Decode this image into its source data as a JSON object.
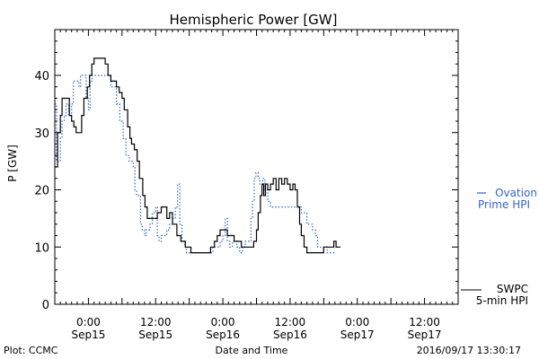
{
  "chart_data": {
    "type": "line",
    "title": "Hemispheric Power [GW]",
    "ylabel": "P [GW]",
    "xlabel": "Date and Time",
    "footer_left": "Plot: CCMC",
    "footer_right": "2016/09/17 13:30:17",
    "x_unit": "hours since 2016-09-14 18:00",
    "xlim": [
      0,
      72
    ],
    "ylim": [
      0,
      48
    ],
    "yticks": [
      0,
      10,
      20,
      30,
      40
    ],
    "xticks": [
      {
        "x": 6,
        "time": "0:00",
        "date": "Sep15"
      },
      {
        "x": 18,
        "time": "12:00",
        "date": "Sep15"
      },
      {
        "x": 30,
        "time": "0:00",
        "date": "Sep16"
      },
      {
        "x": 42,
        "time": "12:00",
        "date": "Sep16"
      },
      {
        "x": 54,
        "time": "0:00",
        "date": "Sep17"
      },
      {
        "x": 66,
        "time": "12:00",
        "date": "Sep17"
      }
    ],
    "series": [
      {
        "name_line1": "SWPC",
        "name_line2": "5-min HPI",
        "color": "#000000",
        "style": "solid",
        "points": [
          [
            0.0,
            24
          ],
          [
            0.5,
            30
          ],
          [
            1.0,
            33
          ],
          [
            1.3,
            36
          ],
          [
            2.2,
            36
          ],
          [
            2.6,
            33
          ],
          [
            3.0,
            32
          ],
          [
            3.4,
            31
          ],
          [
            3.8,
            30
          ],
          [
            4.4,
            30
          ],
          [
            4.8,
            33
          ],
          [
            5.2,
            36
          ],
          [
            5.8,
            38
          ],
          [
            6.2,
            40
          ],
          [
            6.6,
            42
          ],
          [
            7.0,
            43
          ],
          [
            8.6,
            43
          ],
          [
            9.0,
            42
          ],
          [
            9.5,
            40
          ],
          [
            10.0,
            39
          ],
          [
            11.0,
            38
          ],
          [
            11.5,
            37
          ],
          [
            12.0,
            36
          ],
          [
            12.4,
            34
          ],
          [
            13.0,
            31
          ],
          [
            13.4,
            29
          ],
          [
            13.7,
            28
          ],
          [
            14.2,
            27
          ],
          [
            14.7,
            25
          ],
          [
            15.1,
            22
          ],
          [
            15.7,
            19
          ],
          [
            16.1,
            17
          ],
          [
            16.5,
            15
          ],
          [
            18.0,
            15
          ],
          [
            18.3,
            16
          ],
          [
            18.7,
            16
          ],
          [
            19.0,
            17
          ],
          [
            19.5,
            17
          ],
          [
            20.0,
            15
          ],
          [
            20.5,
            16
          ],
          [
            21.0,
            14
          ],
          [
            21.4,
            14
          ],
          [
            21.8,
            12
          ],
          [
            22.2,
            12
          ],
          [
            22.5,
            11
          ],
          [
            23.0,
            11
          ],
          [
            23.3,
            10
          ],
          [
            24.0,
            10
          ],
          [
            24.3,
            9
          ],
          [
            27.5,
            9
          ],
          [
            27.8,
            10
          ],
          [
            28.5,
            11
          ],
          [
            29.0,
            12
          ],
          [
            29.5,
            13
          ],
          [
            30.5,
            13
          ],
          [
            30.8,
            12
          ],
          [
            31.5,
            12
          ],
          [
            32.0,
            11
          ],
          [
            33.0,
            11
          ],
          [
            33.3,
            10
          ],
          [
            35.0,
            10
          ],
          [
            35.5,
            11
          ],
          [
            36.0,
            13
          ],
          [
            36.3,
            16
          ],
          [
            36.7,
            19
          ],
          [
            37.0,
            21
          ],
          [
            37.3,
            19
          ],
          [
            37.6,
            21
          ],
          [
            38.0,
            20
          ],
          [
            38.5,
            21
          ],
          [
            39.0,
            22
          ],
          [
            39.5,
            20
          ],
          [
            40.0,
            22
          ],
          [
            40.5,
            21
          ],
          [
            41.0,
            22
          ],
          [
            41.5,
            21
          ],
          [
            42.0,
            20
          ],
          [
            42.5,
            21
          ],
          [
            42.9,
            20
          ],
          [
            43.3,
            17
          ],
          [
            43.7,
            14
          ],
          [
            44.0,
            12
          ],
          [
            44.5,
            10
          ],
          [
            45.0,
            9
          ],
          [
            47.5,
            9
          ],
          [
            48.0,
            10
          ],
          [
            49.5,
            10
          ],
          [
            49.8,
            11
          ],
          [
            50.2,
            10
          ],
          [
            51.0,
            10
          ]
        ]
      },
      {
        "name_line1": "Ovation",
        "name_line2": "Prime HPI",
        "color": "#3366cc",
        "style": "dotted",
        "points": [
          [
            0.0,
            35
          ],
          [
            0.3,
            25
          ],
          [
            0.8,
            25
          ],
          [
            1.0,
            29
          ],
          [
            1.3,
            32
          ],
          [
            1.7,
            33
          ],
          [
            2.0,
            35
          ],
          [
            2.5,
            33
          ],
          [
            3.0,
            35
          ],
          [
            3.3,
            39
          ],
          [
            4.0,
            39
          ],
          [
            4.3,
            38
          ],
          [
            4.6,
            40
          ],
          [
            5.2,
            40
          ],
          [
            5.6,
            36
          ],
          [
            6.0,
            34
          ],
          [
            6.3,
            39
          ],
          [
            6.7,
            40
          ],
          [
            9.5,
            40
          ],
          [
            10.0,
            38
          ],
          [
            11.0,
            35
          ],
          [
            11.6,
            32
          ],
          [
            12.2,
            29
          ],
          [
            12.7,
            26
          ],
          [
            13.3,
            25
          ],
          [
            13.7,
            25
          ],
          [
            14.0,
            24
          ],
          [
            14.3,
            20
          ],
          [
            14.6,
            19
          ],
          [
            15.0,
            19
          ],
          [
            15.3,
            14
          ],
          [
            15.6,
            13
          ],
          [
            16.0,
            12
          ],
          [
            16.3,
            13
          ],
          [
            17.0,
            14
          ],
          [
            17.4,
            16
          ],
          [
            18.0,
            17
          ],
          [
            18.3,
            12
          ],
          [
            18.6,
            11
          ],
          [
            19.0,
            12
          ],
          [
            19.5,
            12
          ],
          [
            20.0,
            13
          ],
          [
            20.5,
            14
          ],
          [
            21.0,
            15
          ],
          [
            21.5,
            17
          ],
          [
            21.9,
            21
          ],
          [
            22.3,
            14
          ],
          [
            22.7,
            11
          ],
          [
            23.2,
            10
          ],
          [
            23.5,
            9
          ],
          [
            27.8,
            9
          ],
          [
            28.2,
            10
          ],
          [
            29.0,
            10
          ],
          [
            29.5,
            11
          ],
          [
            30.0,
            12
          ],
          [
            30.4,
            15
          ],
          [
            30.8,
            11
          ],
          [
            31.2,
            10
          ],
          [
            31.7,
            11
          ],
          [
            32.3,
            11
          ],
          [
            32.5,
            10
          ],
          [
            33.0,
            9
          ],
          [
            33.5,
            10
          ],
          [
            34.0,
            11
          ],
          [
            35.0,
            15
          ],
          [
            35.3,
            18
          ],
          [
            35.6,
            22
          ],
          [
            35.9,
            23
          ],
          [
            36.3,
            22
          ],
          [
            36.6,
            21
          ],
          [
            37.1,
            22
          ],
          [
            37.5,
            20
          ],
          [
            38.0,
            18
          ],
          [
            38.5,
            17
          ],
          [
            43.5,
            17
          ],
          [
            44.0,
            16
          ],
          [
            45.0,
            14
          ],
          [
            46.0,
            13
          ],
          [
            46.5,
            12
          ],
          [
            46.9,
            10
          ],
          [
            47.3,
            10
          ],
          [
            47.6,
            10
          ],
          [
            48.3,
            10
          ],
          [
            48.6,
            9
          ],
          [
            50.0,
            9
          ]
        ]
      }
    ]
  }
}
